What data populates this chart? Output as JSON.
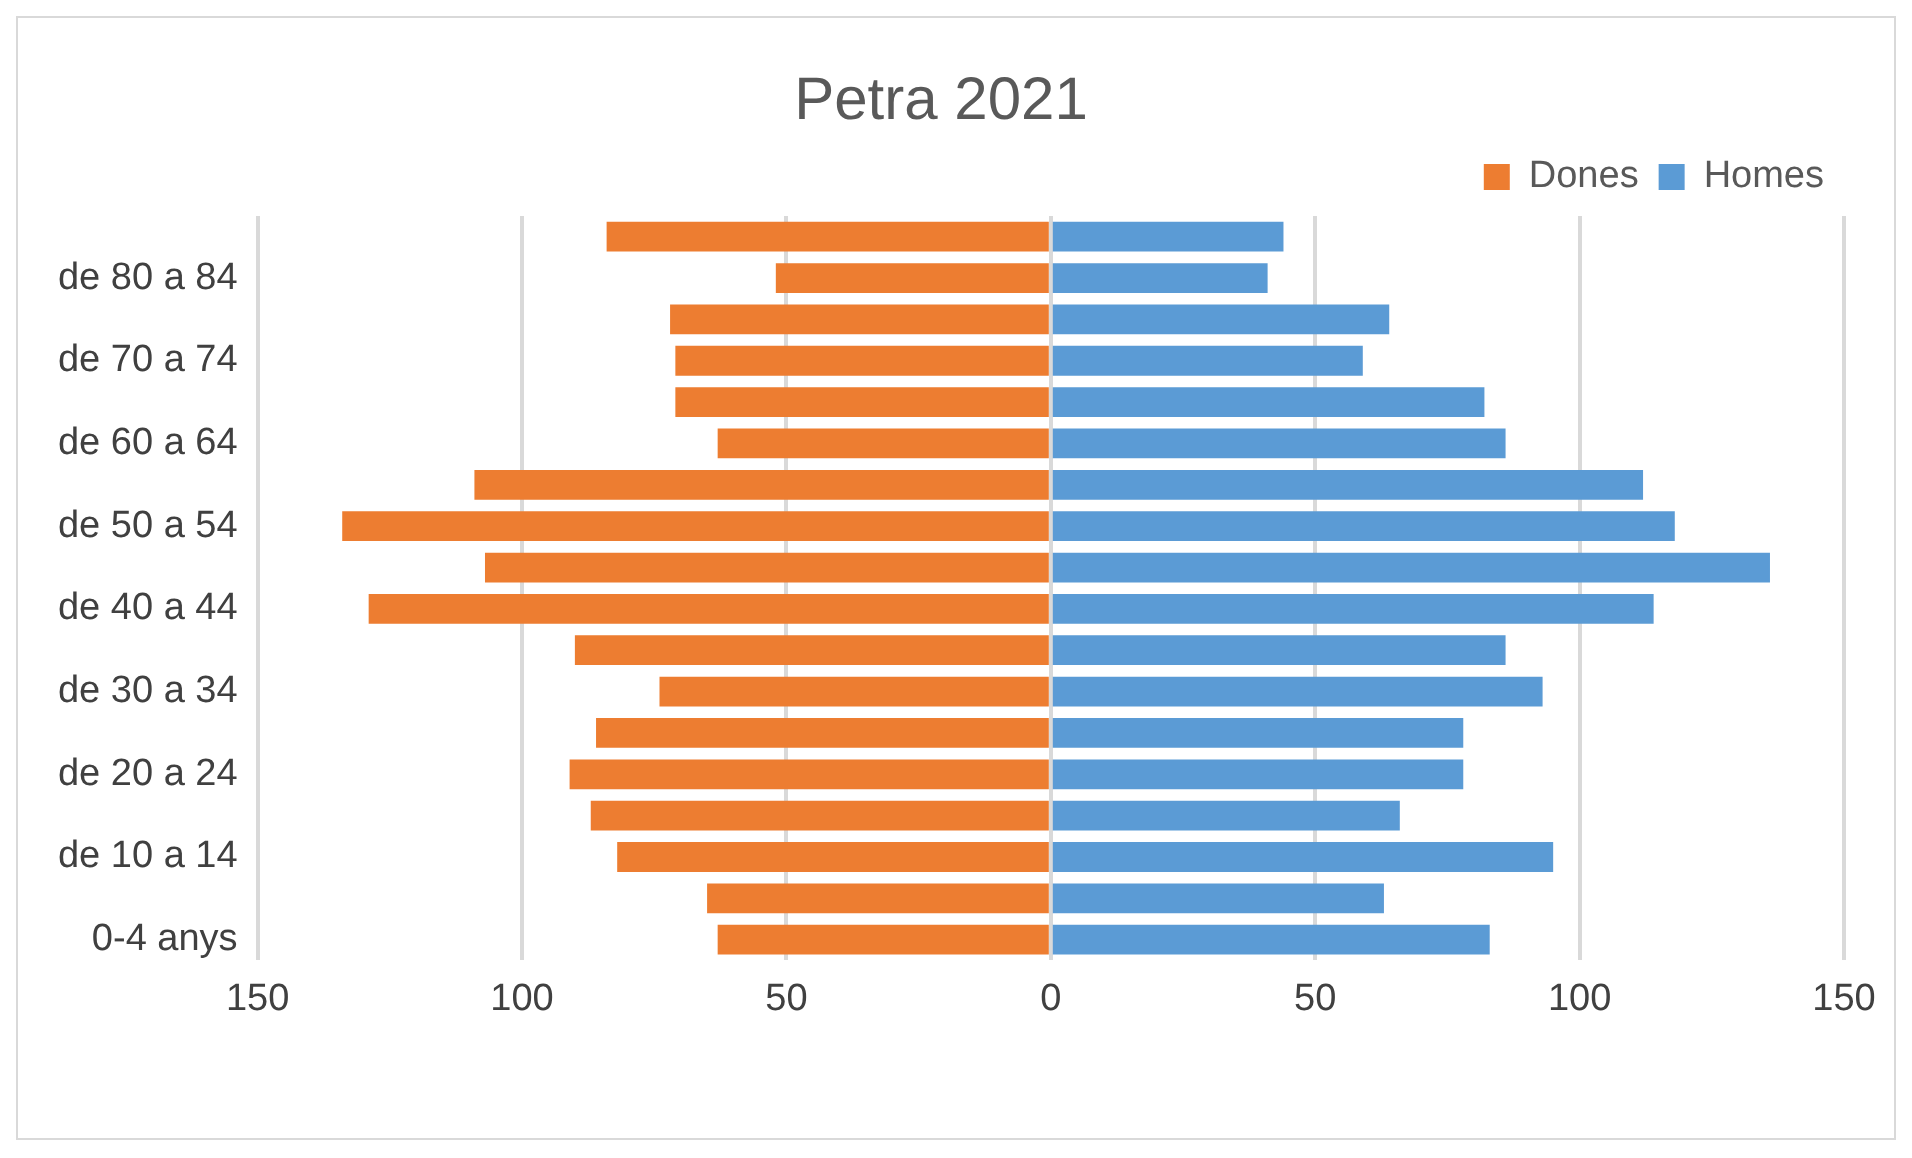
{
  "chart_data": {
    "type": "bar",
    "title": "Petra 2021",
    "orientation": "horizontal",
    "stacked": true,
    "categories": [
      null,
      "de 80 a 84",
      null,
      "de 70 a 74",
      null,
      "de 60 a 64",
      null,
      "de 50 a 54",
      null,
      "de 40 a 44",
      null,
      "de 30 a 34",
      null,
      "de 20 a 24",
      null,
      "de 10 a 14",
      null,
      "0-4 anys"
    ],
    "series": [
      {
        "name": "Dones",
        "color": "#ed7d31",
        "values": [
          -84,
          -52,
          -72,
          -71,
          -71,
          -63,
          -109,
          -134,
          -107,
          -129,
          -90,
          -74,
          -86,
          -91,
          -87,
          -82,
          -65,
          -63
        ]
      },
      {
        "name": "Homes",
        "color": "#5b9bd5",
        "values": [
          44,
          41,
          64,
          59,
          82,
          86,
          112,
          118,
          136,
          114,
          86,
          93,
          78,
          78,
          66,
          95,
          63,
          83
        ]
      }
    ],
    "xlim": [
      -150,
      150
    ],
    "xticks": [
      {
        "value": -150,
        "label": "150"
      },
      {
        "value": -100,
        "label": "100"
      },
      {
        "value": -50,
        "label": "50"
      },
      0,
      50,
      100,
      150
    ],
    "grid": "x",
    "legend": "top right"
  }
}
